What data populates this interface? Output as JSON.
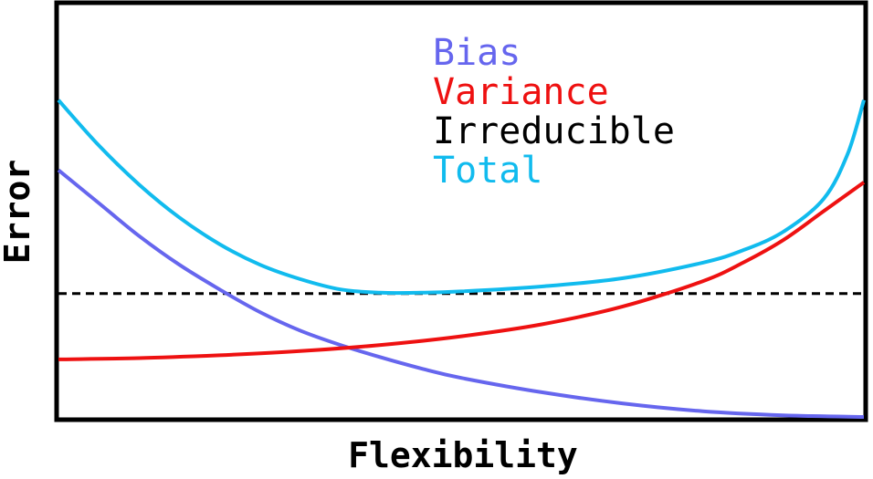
{
  "chart_data": {
    "type": "line",
    "title": "",
    "xlabel": "Flexibility",
    "ylabel": "Error",
    "xlim": [
      0,
      1
    ],
    "ylim": [
      0,
      1
    ],
    "grid": false,
    "ticks": false,
    "legend": "top-center",
    "series": [
      {
        "name": "Bias",
        "color": "#6666ee",
        "style": "solid",
        "x": [
          0.0,
          0.05,
          0.1,
          0.15,
          0.2,
          0.25,
          0.3,
          0.35,
          0.4,
          0.45,
          0.5,
          0.6,
          0.7,
          0.8,
          0.9,
          1.0
        ],
        "y": [
          0.6,
          0.52,
          0.44,
          0.37,
          0.31,
          0.255,
          0.21,
          0.175,
          0.145,
          0.118,
          0.095,
          0.06,
          0.033,
          0.014,
          0.004,
          0.0
        ]
      },
      {
        "name": "Variance",
        "color": "#ee1111",
        "style": "solid",
        "x": [
          0.0,
          0.1,
          0.2,
          0.3,
          0.4,
          0.5,
          0.6,
          0.7,
          0.8,
          0.85,
          0.9,
          0.95,
          1.0
        ],
        "y": [
          0.14,
          0.143,
          0.15,
          0.16,
          0.175,
          0.196,
          0.225,
          0.268,
          0.33,
          0.375,
          0.43,
          0.5,
          0.57
        ]
      },
      {
        "name": "Irreducible",
        "color": "#000000",
        "style": "dashed",
        "x": [
          0.0,
          1.0
        ],
        "y": [
          0.3,
          0.3
        ]
      },
      {
        "name": "Total",
        "color": "#11bbee",
        "style": "solid",
        "x": [
          0.0,
          0.05,
          0.1,
          0.15,
          0.2,
          0.25,
          0.3,
          0.35,
          0.4,
          0.45,
          0.5,
          0.6,
          0.7,
          0.8,
          0.85,
          0.9,
          0.95,
          0.98,
          1.0
        ],
        "y": [
          0.77,
          0.66,
          0.565,
          0.485,
          0.42,
          0.37,
          0.335,
          0.31,
          0.302,
          0.302,
          0.305,
          0.317,
          0.337,
          0.375,
          0.405,
          0.45,
          0.53,
          0.64,
          0.77
        ]
      }
    ]
  }
}
